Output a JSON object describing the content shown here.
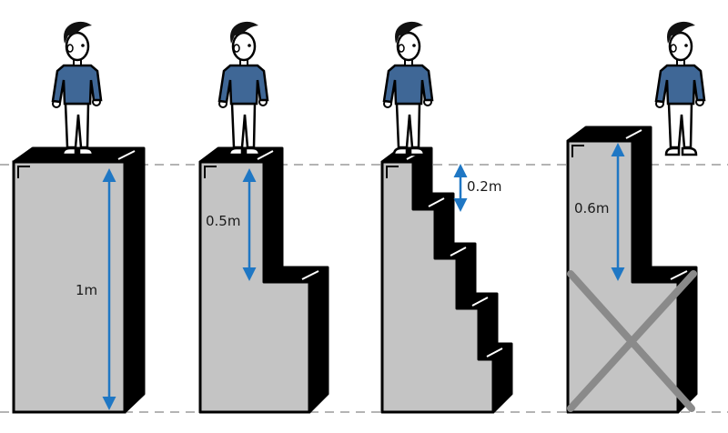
{
  "colors": {
    "block_fill": "#c4c4c4",
    "block_outline": "#000000",
    "arrow": "#1f77c4",
    "guide_line": "#888888",
    "cross": "#8a8a8a",
    "sweater": "#3f6796",
    "skin": "#ffffff",
    "hair": "#111111"
  },
  "panels": [
    {
      "id": "single-block",
      "step_count": 1,
      "measure_label": "1m"
    },
    {
      "id": "two-steps",
      "step_count": 2,
      "measure_label": "0.5m"
    },
    {
      "id": "five-steps",
      "step_count": 5,
      "measure_label": "0.2m"
    },
    {
      "id": "unequal-steps",
      "step_count": 2,
      "measure_label": "0.6m",
      "crossed_out": true
    }
  ]
}
